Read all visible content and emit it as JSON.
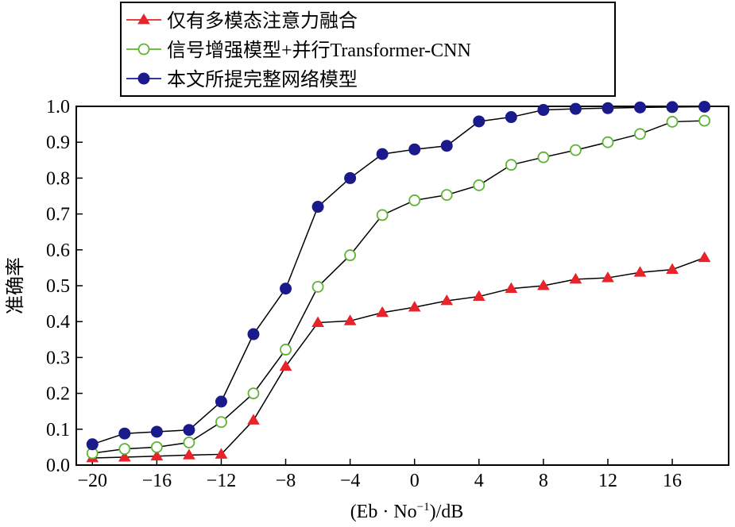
{
  "chart_data": {
    "type": "line",
    "xlabel_parts": {
      "base": "(Eb · No",
      "sup": "−1",
      "tail": ")/dB"
    },
    "ylabel": "准确率",
    "xlim": [
      -20,
      18
    ],
    "ylim": [
      0,
      1.0
    ],
    "x_ticks": [
      -20,
      -16,
      -12,
      -8,
      -4,
      0,
      4,
      8,
      12,
      16
    ],
    "x_tick_labels": [
      "−20",
      "−16",
      "−12",
      "−8",
      "−4",
      "0",
      "4",
      "8",
      "12",
      "16"
    ],
    "y_ticks": [
      0,
      0.1,
      0.2,
      0.3,
      0.4,
      0.5,
      0.6,
      0.7,
      0.8,
      0.9,
      1.0
    ],
    "y_tick_labels": [
      "0.0",
      "0.1",
      "0.2",
      "0.3",
      "0.4",
      "0.5",
      "0.6",
      "0.7",
      "0.8",
      "0.9",
      "1.0"
    ],
    "grid": false,
    "legend_position": "top-left, above plot",
    "x": [
      -20,
      -18,
      -16,
      -14,
      -12,
      -10,
      -8,
      -6,
      -4,
      -2,
      0,
      2,
      4,
      6,
      8,
      10,
      12,
      14,
      16,
      18
    ],
    "series": [
      {
        "name": "仅有多模态注意力融合",
        "marker": "triangle",
        "color": "#e8232a",
        "values": [
          0.02,
          0.022,
          0.025,
          0.028,
          0.03,
          0.125,
          0.275,
          0.397,
          0.402,
          0.425,
          0.44,
          0.458,
          0.47,
          0.492,
          0.5,
          0.518,
          0.522,
          0.537,
          0.545,
          0.578
        ]
      },
      {
        "name": "信号增强模型+并行Transformer-CNN",
        "marker": "open-circle",
        "color": "#5cb531",
        "values": [
          0.033,
          0.045,
          0.05,
          0.063,
          0.12,
          0.2,
          0.322,
          0.497,
          0.585,
          0.697,
          0.738,
          0.753,
          0.78,
          0.837,
          0.858,
          0.878,
          0.9,
          0.923,
          0.957,
          0.96
        ]
      },
      {
        "name": "本文所提完整网络模型",
        "marker": "filled-circle",
        "color": "#1a1a8c",
        "values": [
          0.058,
          0.088,
          0.093,
          0.098,
          0.177,
          0.365,
          0.492,
          0.72,
          0.8,
          0.867,
          0.88,
          0.89,
          0.958,
          0.97,
          0.99,
          0.993,
          0.995,
          0.997,
          0.998,
          0.999
        ]
      }
    ]
  }
}
